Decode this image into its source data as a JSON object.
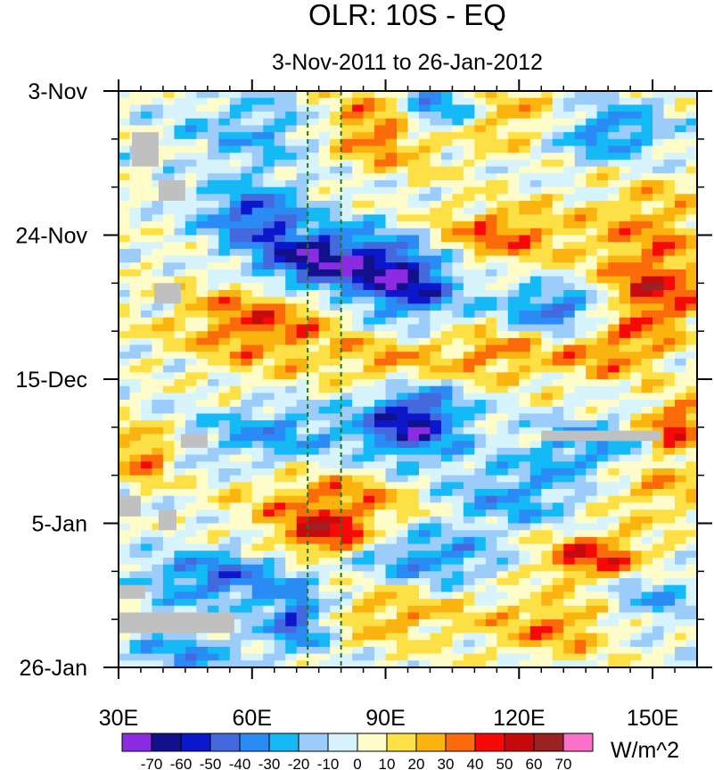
{
  "chart_data": {
    "type": "heatmap",
    "title": "OLR: 10S - EQ",
    "subtitle": "3-Nov-2011 to 26-Jan-2012",
    "x_axis": {
      "range": [
        30,
        160
      ],
      "ticks": [
        30,
        60,
        90,
        120,
        150
      ],
      "tick_labels": [
        "30E",
        "60E",
        "90E",
        "120E",
        "150E"
      ]
    },
    "y_axis": {
      "range_days": [
        0,
        84
      ],
      "ticks_days": [
        0,
        21,
        42,
        63,
        84
      ],
      "tick_labels": [
        "3-Nov",
        "24-Nov",
        "15-Dec",
        "5-Jan",
        "26-Jan"
      ]
    },
    "reference_lines_lon": [
      72.5,
      80
    ],
    "colorbar": {
      "unit_label": "W/m^2",
      "levels": [
        -70,
        -60,
        -50,
        -40,
        -30,
        -20,
        -10,
        0,
        10,
        20,
        30,
        40,
        50,
        60,
        70
      ],
      "level_labels": [
        "-70",
        "-60",
        "-50",
        "-40",
        "-30",
        "-20",
        "-10",
        "0",
        "10",
        "20",
        "30",
        "40",
        "50",
        "60",
        "70"
      ],
      "colors": [
        "#8b2be2",
        "#13108c",
        "#0c17cc",
        "#4468dd",
        "#2a8bf4",
        "#14b9f5",
        "#9bccfa",
        "#d7f4fc",
        "#fefdca",
        "#fde046",
        "#fbb40f",
        "#fb6b0a",
        "#f60a08",
        "#c70a0d",
        "#9b2222",
        "#fb70c8"
      ]
    },
    "missing_color": "#c0c0c0",
    "anomaly_features": [
      {
        "lon": 90,
        "day": 5,
        "amp": 45,
        "sx": 10,
        "sy": 4
      },
      {
        "lon": 100,
        "day": 3,
        "amp": -55,
        "sx": 7,
        "sy": 2.5
      },
      {
        "lon": 118,
        "day": 4,
        "amp": 25,
        "sx": 8,
        "sy": 3
      },
      {
        "lon": 140,
        "day": 6,
        "amp": -35,
        "sx": 9,
        "sy": 3
      },
      {
        "lon": 62,
        "day": 6,
        "amp": -25,
        "sx": 12,
        "sy": 4
      },
      {
        "lon": 115,
        "day": 21,
        "amp": 35,
        "sx": 12,
        "sy": 3
      },
      {
        "lon": 150,
        "day": 20,
        "amp": 25,
        "sx": 10,
        "sy": 5
      },
      {
        "lon": 75,
        "day": 25,
        "amp": -72,
        "sx": 12,
        "sy": 3.5
      },
      {
        "lon": 60,
        "day": 18,
        "amp": -45,
        "sx": 8,
        "sy": 3
      },
      {
        "lon": 95,
        "day": 28,
        "amp": -55,
        "sx": 8,
        "sy": 4
      },
      {
        "lon": 128,
        "day": 32,
        "amp": -45,
        "sx": 9,
        "sy": 2.5
      },
      {
        "lon": 150,
        "day": 30,
        "amp": 45,
        "sx": 8,
        "sy": 4
      },
      {
        "lon": 62,
        "day": 33,
        "amp": 40,
        "sx": 13,
        "sy": 5
      },
      {
        "lon": 92,
        "day": 40,
        "amp": 30,
        "sx": 9,
        "sy": 3
      },
      {
        "lon": 115,
        "day": 38,
        "amp": 30,
        "sx": 8,
        "sy": 3
      },
      {
        "lon": 140,
        "day": 38,
        "amp": 30,
        "sx": 9,
        "sy": 3
      },
      {
        "lon": 96,
        "day": 48,
        "amp": -65,
        "sx": 8,
        "sy": 4
      },
      {
        "lon": 65,
        "day": 50,
        "amp": -30,
        "sx": 12,
        "sy": 3
      },
      {
        "lon": 135,
        "day": 52,
        "amp": -30,
        "sx": 10,
        "sy": 3
      },
      {
        "lon": 155,
        "day": 49,
        "amp": 45,
        "sx": 5,
        "sy": 3
      },
      {
        "lon": 35,
        "day": 53,
        "amp": 35,
        "sx": 5,
        "sy": 3
      },
      {
        "lon": 78,
        "day": 60,
        "amp": 35,
        "sx": 14,
        "sy": 3
      },
      {
        "lon": 118,
        "day": 59,
        "amp": -30,
        "sx": 12,
        "sy": 3
      },
      {
        "lon": 150,
        "day": 58,
        "amp": 25,
        "sx": 9,
        "sy": 3
      },
      {
        "lon": 76,
        "day": 65,
        "amp": 48,
        "sx": 7,
        "sy": 2
      },
      {
        "lon": 100,
        "day": 68,
        "amp": -35,
        "sx": 11,
        "sy": 3
      },
      {
        "lon": 137,
        "day": 68,
        "amp": 45,
        "sx": 9,
        "sy": 2.5
      },
      {
        "lon": 52,
        "day": 71,
        "amp": -40,
        "sx": 12,
        "sy": 3
      },
      {
        "lon": 70,
        "day": 77,
        "amp": -50,
        "sx": 5,
        "sy": 3
      },
      {
        "lon": 92,
        "day": 76,
        "amp": 25,
        "sx": 12,
        "sy": 3
      },
      {
        "lon": 128,
        "day": 78,
        "amp": 30,
        "sx": 10,
        "sy": 3
      },
      {
        "lon": 45,
        "day": 82,
        "amp": -30,
        "sx": 10,
        "sy": 2
      },
      {
        "lon": 150,
        "day": 74,
        "amp": -25,
        "sx": 8,
        "sy": 3
      }
    ],
    "missing_blocks": [
      {
        "lon0": 33,
        "lon1": 39,
        "day0": 6,
        "day1": 11
      },
      {
        "lon0": 39,
        "lon1": 45,
        "day0": 13,
        "day1": 16
      },
      {
        "lon0": 38,
        "lon1": 44,
        "day0": 28,
        "day1": 31
      },
      {
        "lon0": 44,
        "lon1": 50,
        "day0": 50,
        "day1": 52
      },
      {
        "lon0": 30,
        "lon1": 35,
        "day0": 59,
        "day1": 62
      },
      {
        "lon0": 39,
        "lon1": 43,
        "day0": 61,
        "day1": 64
      },
      {
        "lon0": 30,
        "lon1": 36,
        "day0": 72,
        "day1": 74
      },
      {
        "lon0": 30,
        "lon1": 56,
        "day0": 76,
        "day1": 79
      },
      {
        "lon0": 125,
        "lon1": 152,
        "day0": 49.5,
        "day1": 51
      }
    ]
  }
}
